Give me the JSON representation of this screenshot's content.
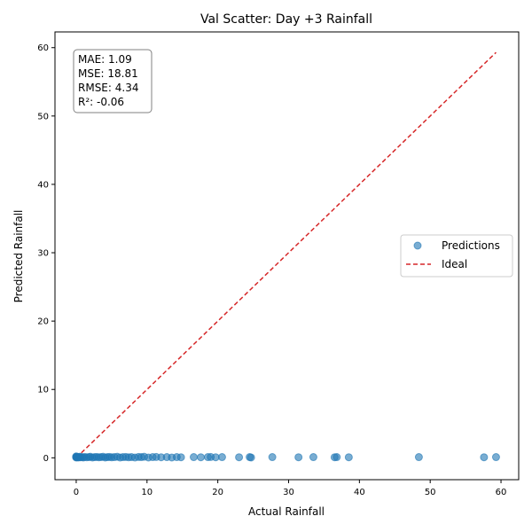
{
  "chart_data": {
    "type": "scatter",
    "title": "Val Scatter: Day +3 Rainfall",
    "xlabel": "Actual Rainfall",
    "ylabel": "Predicted Rainfall",
    "xlim": [
      -3,
      62.5
    ],
    "ylim": [
      -3.2,
      62.3
    ],
    "xticks": [
      0,
      10,
      20,
      30,
      40,
      50,
      60
    ],
    "yticks": [
      0,
      10,
      20,
      30,
      40,
      50,
      60
    ],
    "grid": false,
    "legend_position": "center-right",
    "stats": [
      "MAE: 1.09",
      "MSE: 18.81",
      "RMSE: 4.34",
      "R²: -0.06"
    ],
    "series": [
      {
        "name": "Predictions",
        "kind": "scatter",
        "color": "#1f77b4",
        "points": [
          [
            0,
            0.05
          ],
          [
            0,
            0.1
          ],
          [
            0,
            0.15
          ],
          [
            0,
            0.2
          ],
          [
            0.1,
            0.08
          ],
          [
            0.2,
            0.12
          ],
          [
            0.3,
            0.05
          ],
          [
            0.4,
            0.1
          ],
          [
            0.5,
            0.15
          ],
          [
            0.6,
            0.08
          ],
          [
            0.8,
            0.1
          ],
          [
            1.0,
            0.05
          ],
          [
            1.2,
            0.12
          ],
          [
            1.5,
            0.08
          ],
          [
            1.8,
            0.1
          ],
          [
            2.0,
            0.15
          ],
          [
            2.3,
            0.05
          ],
          [
            2.6,
            0.1
          ],
          [
            2.9,
            0.12
          ],
          [
            3.2,
            0.08
          ],
          [
            3.5,
            0.1
          ],
          [
            3.8,
            0.15
          ],
          [
            4.1,
            0.05
          ],
          [
            4.4,
            0.1
          ],
          [
            4.7,
            0.12
          ],
          [
            5.0,
            0.08
          ],
          [
            5.4,
            0.1
          ],
          [
            5.8,
            0.15
          ],
          [
            6.2,
            0.05
          ],
          [
            6.6,
            0.1
          ],
          [
            7.0,
            0.12
          ],
          [
            7.4,
            0.08
          ],
          [
            7.8,
            0.1
          ],
          [
            8.3,
            0.05
          ],
          [
            8.8,
            0.12
          ],
          [
            9.2,
            0.1
          ],
          [
            9.6,
            0.15
          ],
          [
            10.2,
            0.05
          ],
          [
            10.8,
            0.1
          ],
          [
            11.3,
            0.12
          ],
          [
            12.0,
            0.08
          ],
          [
            12.8,
            0.1
          ],
          [
            13.5,
            0.05
          ],
          [
            14.2,
            0.1
          ],
          [
            14.8,
            0.08
          ],
          [
            16.6,
            0.1
          ],
          [
            17.6,
            0.08
          ],
          [
            18.6,
            0.1
          ],
          [
            19.0,
            0.12
          ],
          [
            19.7,
            0.08
          ],
          [
            20.6,
            0.1
          ],
          [
            23.0,
            0.08
          ],
          [
            24.5,
            0.1
          ],
          [
            24.7,
            0.05
          ],
          [
            27.7,
            0.1
          ],
          [
            31.4,
            0.08
          ],
          [
            33.5,
            0.1
          ],
          [
            36.5,
            0.08
          ],
          [
            36.8,
            0.1
          ],
          [
            38.5,
            0.08
          ],
          [
            48.4,
            0.1
          ],
          [
            57.6,
            0.08
          ],
          [
            59.3,
            0.1
          ]
        ]
      },
      {
        "name": "Ideal",
        "kind": "line",
        "color": "#d62728",
        "points": [
          [
            0,
            0
          ],
          [
            59.3,
            59.3
          ]
        ]
      }
    ]
  }
}
